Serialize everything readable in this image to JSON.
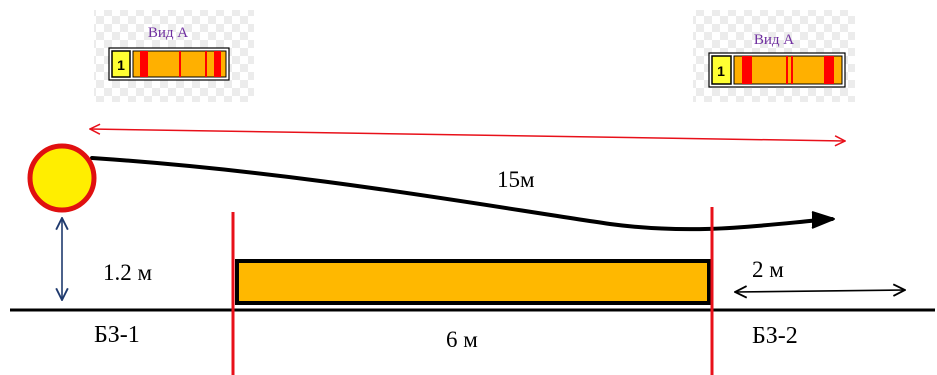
{
  "badges": [
    {
      "title": "Вид А",
      "number": "1"
    },
    {
      "title": "Вид А",
      "number": "1"
    }
  ],
  "labels": {
    "distance_total": "15м",
    "launch_height": "1.2 м",
    "zone_left": "БЗ-1",
    "obstacle_length": "6 м",
    "zone_right_length": "2 м",
    "zone_right": "БЗ-2"
  },
  "colors": {
    "ball_fill": "#ffee00",
    "ball_stroke": "#e01010",
    "obstacle_fill": "#ffb800",
    "badge_stripe": "#ff0000",
    "badge_body": "#ffb000",
    "number_box": "#ffff33",
    "red_line": "#e8101a",
    "height_arrow": "#1f3a6e",
    "badge_title": "#7030a0"
  }
}
